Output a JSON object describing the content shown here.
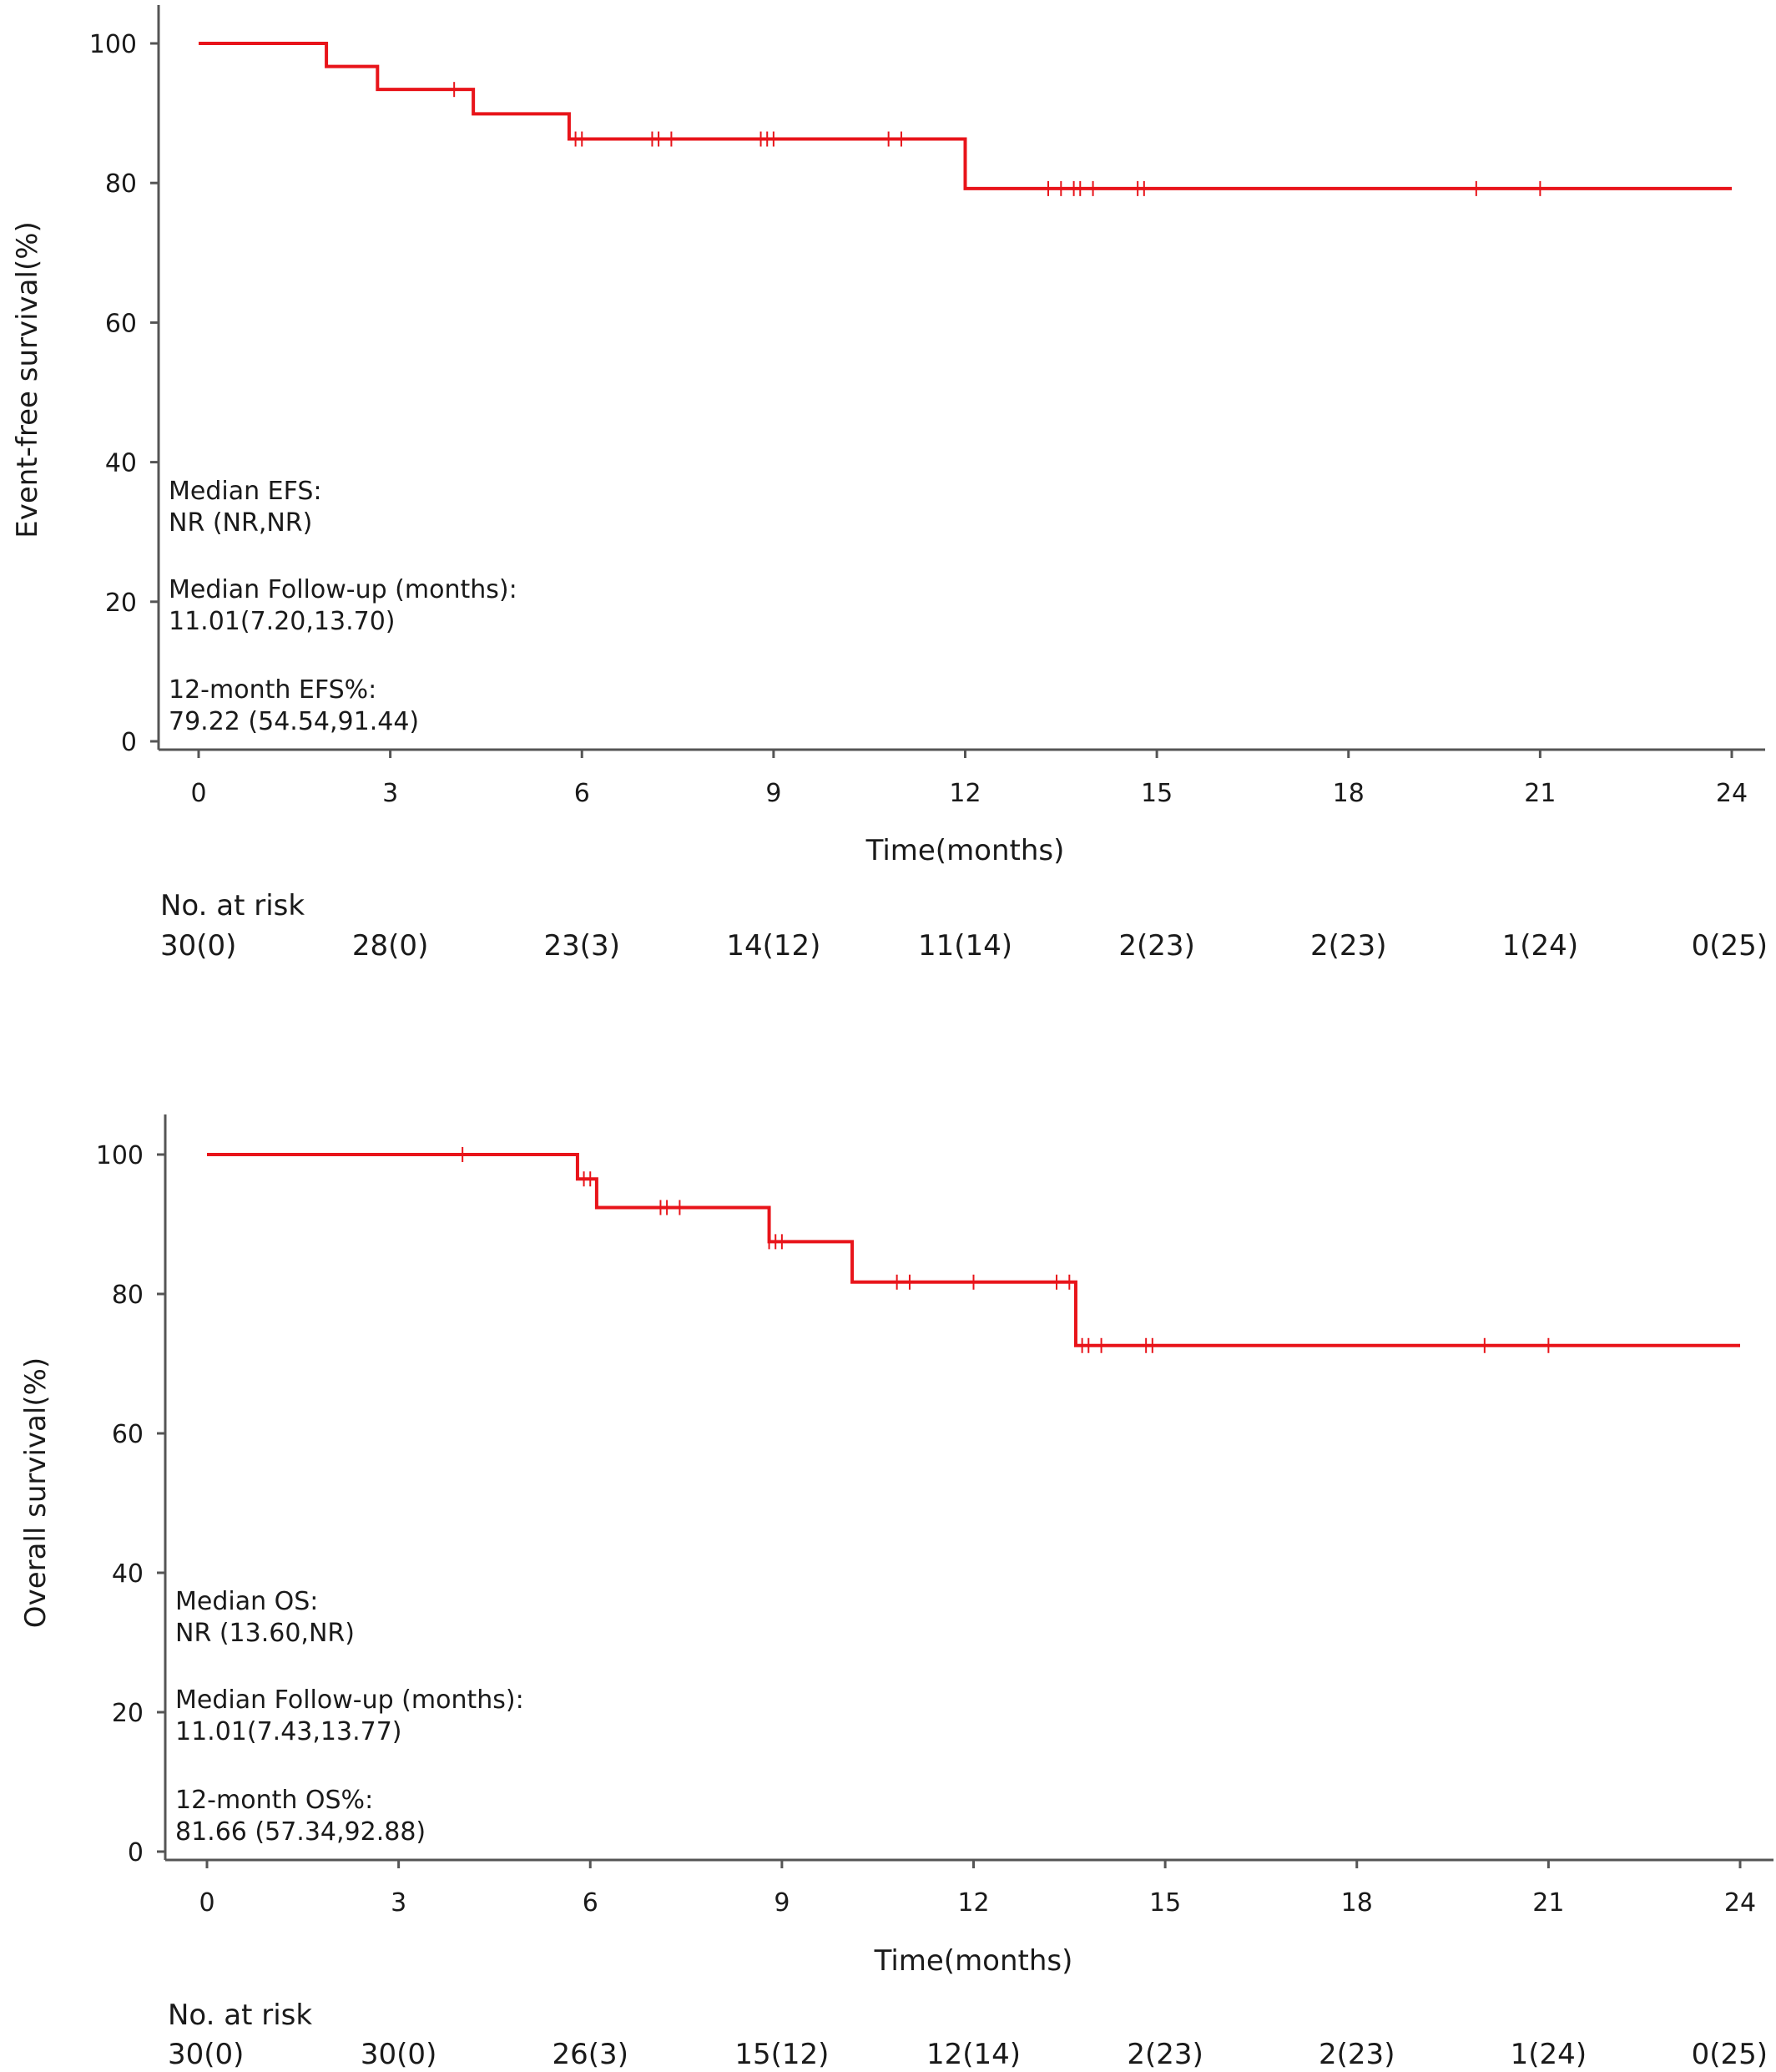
{
  "chart_data": [
    {
      "type": "line",
      "subtype": "kaplan-meier",
      "title": "",
      "xlabel": "Time(months)",
      "ylabel": "Event-free survival(%)",
      "xlim": [
        0,
        24
      ],
      "ylim": [
        0,
        100
      ],
      "x_ticks": [
        "0",
        "3",
        "6",
        "9",
        "12",
        "15",
        "18",
        "21",
        "24"
      ],
      "y_ticks": [
        "0",
        "20",
        "40",
        "60",
        "80",
        "100"
      ],
      "grid": false,
      "legend": "none",
      "series": [
        {
          "color": "#e8141a",
          "steps": [
            [
              0,
              100
            ],
            [
              2.0,
              96.7
            ],
            [
              2.8,
              93.4
            ],
            [
              4.3,
              89.9
            ],
            [
              5.8,
              86.3
            ],
            [
              12.0,
              79.2
            ],
            [
              24.0,
              79.2
            ]
          ],
          "censored": [
            [
              4.0,
              93.4
            ],
            [
              5.9,
              86.3
            ],
            [
              6.0,
              86.3
            ],
            [
              7.1,
              86.3
            ],
            [
              7.2,
              86.3
            ],
            [
              7.4,
              86.3
            ],
            [
              8.8,
              86.3
            ],
            [
              8.9,
              86.3
            ],
            [
              9.0,
              86.3
            ],
            [
              10.8,
              86.3
            ],
            [
              11.0,
              86.3
            ],
            [
              13.3,
              79.2
            ],
            [
              13.5,
              79.2
            ],
            [
              13.7,
              79.2
            ],
            [
              13.8,
              79.2
            ],
            [
              14.0,
              79.2
            ],
            [
              14.7,
              79.2
            ],
            [
              14.8,
              79.2
            ],
            [
              20.0,
              79.2
            ],
            [
              21.0,
              79.2
            ]
          ]
        }
      ],
      "annotations": [
        "Median EFS:",
        "NR (NR,NR)",
        "Median Follow-up (months):",
        "11.01(7.20,13.70)",
        "12-month EFS%:",
        "79.22 (54.54,91.44)"
      ],
      "risk_table": {
        "title": "No. at risk",
        "values": [
          "30(0)",
          "28(0)",
          "23(3)",
          "14(12)",
          "11(14)",
          "2(23)",
          "2(23)",
          "1(24)",
          "0(25)"
        ]
      }
    },
    {
      "type": "line",
      "subtype": "kaplan-meier",
      "title": "",
      "xlabel": "Time(months)",
      "ylabel": "Overall survival(%)",
      "xlim": [
        0,
        24
      ],
      "ylim": [
        0,
        100
      ],
      "x_ticks": [
        "0",
        "3",
        "6",
        "9",
        "12",
        "15",
        "18",
        "21",
        "24"
      ],
      "y_ticks": [
        "0",
        "20",
        "40",
        "60",
        "80",
        "100"
      ],
      "grid": false,
      "legend": "none",
      "series": [
        {
          "color": "#e8141a",
          "steps": [
            [
              0,
              100
            ],
            [
              5.8,
              96.5
            ],
            [
              6.1,
              92.4
            ],
            [
              8.8,
              87.5
            ],
            [
              10.1,
              81.7
            ],
            [
              13.6,
              72.6
            ],
            [
              24.0,
              72.6
            ]
          ],
          "censored": [
            [
              4.0,
              100
            ],
            [
              5.9,
              96.5
            ],
            [
              6.0,
              96.5
            ],
            [
              7.1,
              92.4
            ],
            [
              7.2,
              92.4
            ],
            [
              7.4,
              92.4
            ],
            [
              8.8,
              87.5
            ],
            [
              8.9,
              87.5
            ],
            [
              9.0,
              87.5
            ],
            [
              10.8,
              81.7
            ],
            [
              11.0,
              81.7
            ],
            [
              12.0,
              81.7
            ],
            [
              13.3,
              81.7
            ],
            [
              13.5,
              81.7
            ],
            [
              13.7,
              72.6
            ],
            [
              13.8,
              72.6
            ],
            [
              14.0,
              72.6
            ],
            [
              14.7,
              72.6
            ],
            [
              14.8,
              72.6
            ],
            [
              20.0,
              72.6
            ],
            [
              21.0,
              72.6
            ]
          ]
        }
      ],
      "annotations": [
        "Median OS:",
        "NR (13.60,NR)",
        "Median Follow-up (months):",
        "11.01(7.43,13.77)",
        "12-month OS%:",
        "81.66 (57.34,92.88)"
      ],
      "risk_table": {
        "title": "No. at risk",
        "values": [
          "30(0)",
          "30(0)",
          "26(3)",
          "15(12)",
          "12(14)",
          "2(23)",
          "2(23)",
          "1(24)",
          "0(25)"
        ]
      }
    }
  ]
}
